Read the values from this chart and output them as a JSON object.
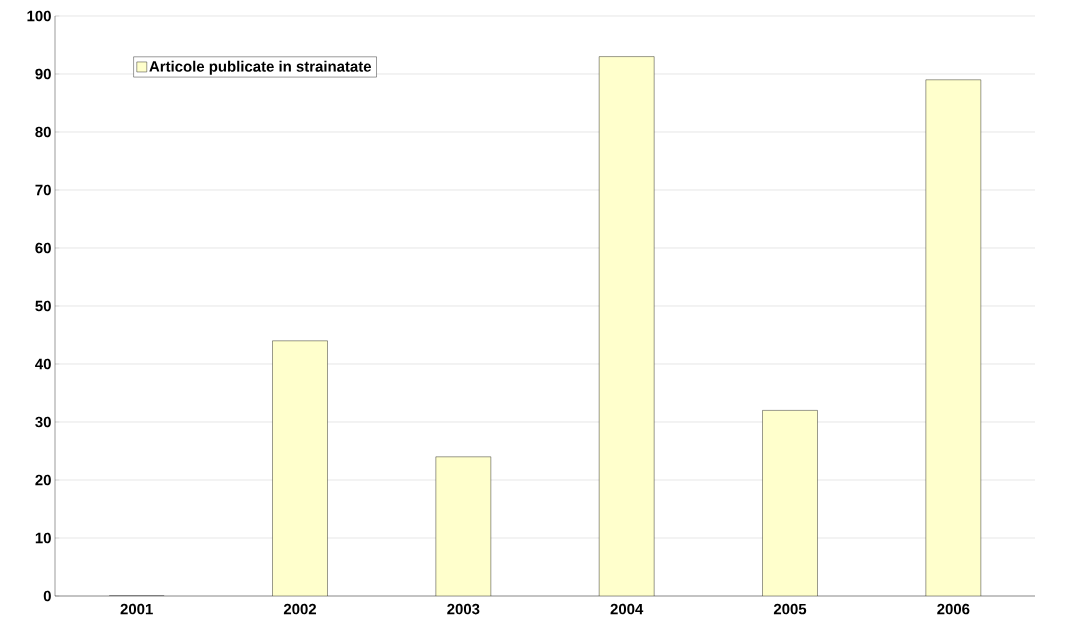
{
  "chart_data": {
    "type": "bar",
    "categories": [
      "2001",
      "2002",
      "2003",
      "2004",
      "2005",
      "2006"
    ],
    "series": [
      {
        "name": "Articole publicate in strainatate",
        "color": "#ffffcc",
        "values": [
          0,
          44,
          24,
          93,
          32,
          89
        ]
      }
    ],
    "ylim": [
      0,
      100
    ],
    "yticks": [
      0,
      10,
      20,
      30,
      40,
      50,
      60,
      70,
      80,
      90,
      100
    ],
    "grid": "y",
    "legend": "top left"
  }
}
